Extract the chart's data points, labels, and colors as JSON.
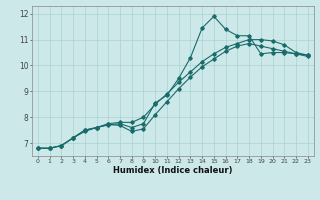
{
  "xlabel": "Humidex (Indice chaleur)",
  "bg_color": "#cce8e8",
  "line_color": "#1a6b6b",
  "grid_color": "#aad0d0",
  "xlim": [
    -0.5,
    23.5
  ],
  "ylim": [
    6.5,
    12.3
  ],
  "xticks": [
    0,
    1,
    2,
    3,
    4,
    5,
    6,
    7,
    8,
    9,
    10,
    11,
    12,
    13,
    14,
    15,
    16,
    17,
    18,
    19,
    20,
    21,
    22,
    23
  ],
  "yticks": [
    7,
    8,
    9,
    10,
    11,
    12
  ],
  "line1_x": [
    0,
    1,
    2,
    3,
    4,
    5,
    6,
    7,
    8,
    9,
    10,
    11,
    12,
    13,
    14,
    15,
    16,
    17,
    18,
    19,
    20,
    21,
    22,
    23
  ],
  "line1_y": [
    6.8,
    6.8,
    6.9,
    7.2,
    7.45,
    7.6,
    7.7,
    7.75,
    7.6,
    7.75,
    8.55,
    8.85,
    9.5,
    10.3,
    11.45,
    11.9,
    11.4,
    11.15,
    11.15,
    10.45,
    10.5,
    10.5,
    10.45,
    10.4
  ],
  "line2_x": [
    0,
    1,
    2,
    3,
    4,
    5,
    6,
    7,
    8,
    9,
    10,
    11,
    12,
    13,
    14,
    15,
    16,
    17,
    18,
    19,
    20,
    21,
    22,
    23
  ],
  "line2_y": [
    6.8,
    6.8,
    6.9,
    7.2,
    7.5,
    7.6,
    7.75,
    7.8,
    7.8,
    8.0,
    8.5,
    8.9,
    9.35,
    9.75,
    10.15,
    10.45,
    10.7,
    10.85,
    11.0,
    11.0,
    10.95,
    10.8,
    10.5,
    10.4
  ],
  "line3_x": [
    0,
    1,
    2,
    3,
    4,
    5,
    6,
    7,
    8,
    9,
    10,
    11,
    12,
    13,
    14,
    15,
    16,
    17,
    18,
    19,
    20,
    21,
    22,
    23
  ],
  "line3_y": [
    6.8,
    6.8,
    6.9,
    7.2,
    7.5,
    7.6,
    7.72,
    7.68,
    7.45,
    7.55,
    8.1,
    8.6,
    9.1,
    9.55,
    9.95,
    10.25,
    10.55,
    10.75,
    10.85,
    10.75,
    10.65,
    10.55,
    10.45,
    10.35
  ]
}
